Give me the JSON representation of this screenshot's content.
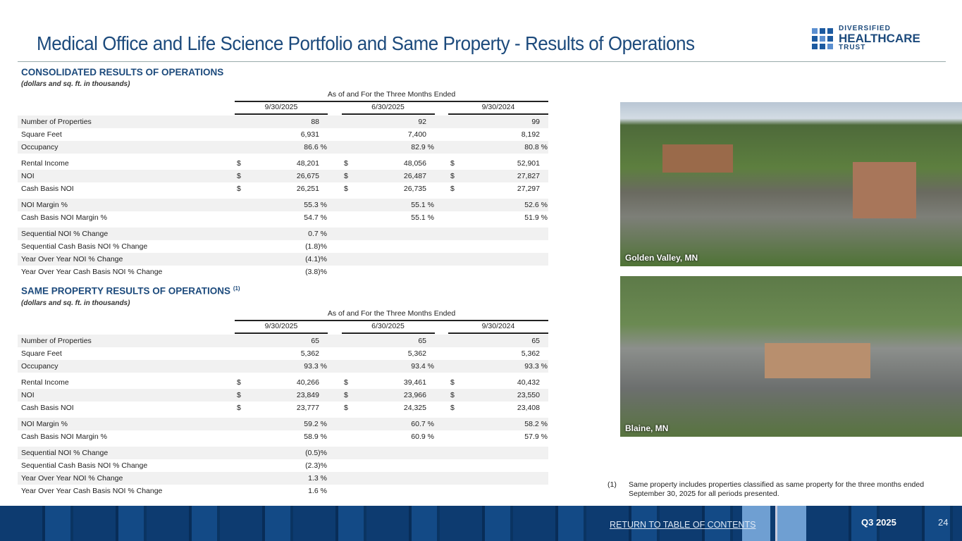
{
  "title": "Medical Office and Life Science Portfolio and Same Property - Results of Operations",
  "logo": {
    "line1": "DIVERSIFIED",
    "line2": "HEALTHCARE",
    "line3": "TRUST"
  },
  "period_header": "As of and For the Three Months Ended",
  "columns": [
    "9/30/2025",
    "6/30/2025",
    "9/30/2024"
  ],
  "consolidated": {
    "heading": "CONSOLIDATED RESULTS OF OPERATIONS",
    "subheading": "(dollars and sq. ft. in thousands)",
    "rows": [
      {
        "label": "Number of Properties",
        "values": [
          "88",
          "92",
          "99"
        ],
        "dollar": false
      },
      {
        "label": "Square Feet",
        "values": [
          "6,931",
          "7,400",
          "8,192"
        ],
        "dollar": false
      },
      {
        "label": "Occupancy",
        "values": [
          "86.6 %",
          "82.9 %",
          "80.8 %"
        ],
        "dollar": false
      },
      {
        "label": "Rental Income",
        "values": [
          "48,201",
          "48,056",
          "52,901"
        ],
        "dollar": true
      },
      {
        "label": "NOI",
        "values": [
          "26,675",
          "26,487",
          "27,827"
        ],
        "dollar": true
      },
      {
        "label": "Cash Basis NOI",
        "values": [
          "26,251",
          "26,735",
          "27,297"
        ],
        "dollar": true
      },
      {
        "label": "NOI Margin %",
        "values": [
          "55.3 %",
          "55.1 %",
          "52.6 %"
        ],
        "dollar": false
      },
      {
        "label": "Cash Basis NOI Margin %",
        "values": [
          "54.7 %",
          "55.1 %",
          "51.9 %"
        ],
        "dollar": false
      },
      {
        "label": "Sequential NOI % Change",
        "values": [
          "0.7 %"
        ],
        "dollar": false
      },
      {
        "label": "Sequential Cash Basis NOI % Change",
        "values": [
          "(1.8)%"
        ],
        "dollar": false
      },
      {
        "label": "Year Over Year NOI % Change",
        "values": [
          "(4.1)%"
        ],
        "dollar": false
      },
      {
        "label": "Year Over Year Cash Basis NOI % Change",
        "values": [
          "(3.8)%"
        ],
        "dollar": false
      }
    ]
  },
  "same_property": {
    "heading": "SAME PROPERTY RESULTS OF OPERATIONS",
    "footnote_ref": "(1)",
    "subheading": "(dollars and sq. ft. in thousands)",
    "rows": [
      {
        "label": "Number of Properties",
        "values": [
          "65",
          "65",
          "65"
        ],
        "dollar": false
      },
      {
        "label": "Square Feet",
        "values": [
          "5,362",
          "5,362",
          "5,362"
        ],
        "dollar": false
      },
      {
        "label": "Occupancy",
        "values": [
          "93.3 %",
          "93.4 %",
          "93.3 %"
        ],
        "dollar": false
      },
      {
        "label": "Rental Income",
        "values": [
          "40,266",
          "39,461",
          "40,432"
        ],
        "dollar": true
      },
      {
        "label": "NOI",
        "values": [
          "23,849",
          "23,966",
          "23,550"
        ],
        "dollar": true
      },
      {
        "label": "Cash Basis NOI",
        "values": [
          "23,777",
          "24,325",
          "23,408"
        ],
        "dollar": true
      },
      {
        "label": "NOI Margin %",
        "values": [
          "59.2 %",
          "60.7 %",
          "58.2 %"
        ],
        "dollar": false
      },
      {
        "label": "Cash Basis NOI Margin %",
        "values": [
          "58.9 %",
          "60.9 %",
          "57.9 %"
        ],
        "dollar": false
      },
      {
        "label": "Sequential NOI % Change",
        "values": [
          "(0.5)%"
        ],
        "dollar": false
      },
      {
        "label": "Sequential Cash Basis NOI % Change",
        "values": [
          "(2.3)%"
        ],
        "dollar": false
      },
      {
        "label": "Year Over Year NOI % Change",
        "values": [
          "1.3 %"
        ],
        "dollar": false
      },
      {
        "label": "Year Over Year Cash Basis NOI % Change",
        "values": [
          "1.6 %"
        ],
        "dollar": false
      }
    ]
  },
  "currency_symbol": "$",
  "photos": [
    {
      "caption": "Golden Valley, MN"
    },
    {
      "caption": "Blaine, MN"
    }
  ],
  "footnote": {
    "number": "(1)",
    "text": "Same property includes properties classified as same property for the three months ended September 30, 2025 for all periods presented."
  },
  "footer": {
    "toc_link": "RETURN TO TABLE OF CONTENTS",
    "quarter": "Q3 2025",
    "page": "24"
  }
}
